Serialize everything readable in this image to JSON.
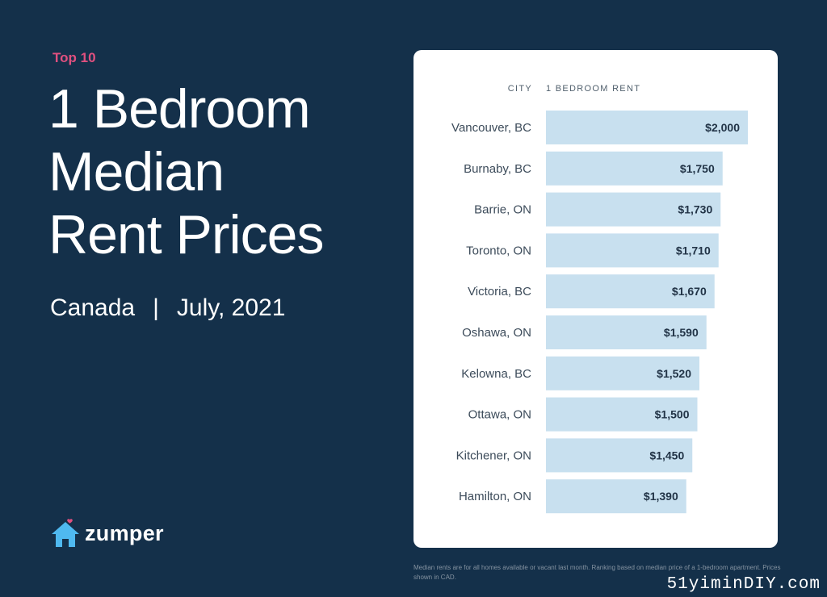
{
  "eyebrow": "Top 10",
  "headline": {
    "line1": "1 Bedroom",
    "line2": "Median",
    "line3": "Rent Prices"
  },
  "subline": {
    "country": "Canada",
    "separator": "|",
    "date": "July, 2021"
  },
  "logo": {
    "icon": "house-heart-icon",
    "text": "zumper"
  },
  "colors": {
    "background": "#14304a",
    "accent": "#e0507f",
    "bar": "#c8e0ef",
    "logo_icon": "#4fb9f0"
  },
  "chart_data": {
    "type": "bar",
    "orientation": "horizontal",
    "column_headers": [
      "CITY",
      "1 BEDROOM RENT"
    ],
    "categories": [
      "Vancouver, BC",
      "Burnaby, BC",
      "Barrie, ON",
      "Toronto, ON",
      "Victoria, BC",
      "Oshawa, ON",
      "Kelowna, BC",
      "Ottawa, ON",
      "Kitchener, ON",
      "Hamilton, ON"
    ],
    "values": [
      2000,
      1750,
      1730,
      1710,
      1670,
      1590,
      1520,
      1500,
      1450,
      1390
    ],
    "labels": [
      "$2,000",
      "$1,750",
      "$1,730",
      "$1,710",
      "$1,670",
      "$1,590",
      "$1,520",
      "$1,500",
      "$1,450",
      "$1,390"
    ],
    "grid": false,
    "legend": "none"
  },
  "footnote": "Median rents are for all homes available or vacant last month. Ranking based on median price of a 1-bedroom apartment. Prices shown in CAD.",
  "watermark": "51yiminDIY.com"
}
